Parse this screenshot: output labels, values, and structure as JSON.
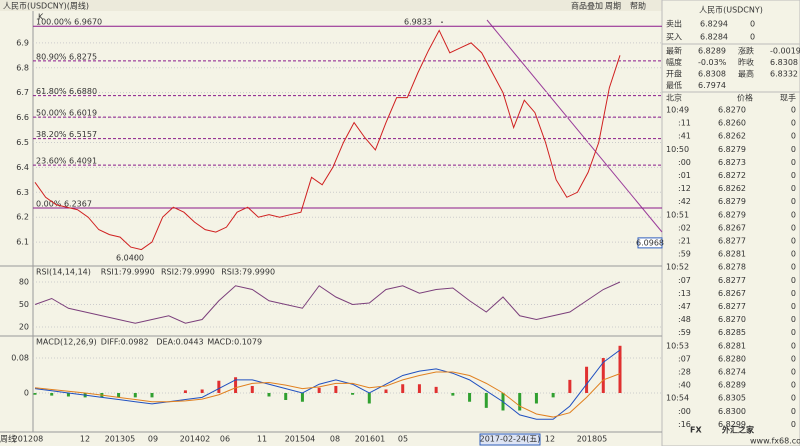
{
  "title": "人民币(USDCNY)(周线)",
  "toolbar": [
    "商品叠加",
    "周期",
    "帮助"
  ],
  "chart_data": [
    {
      "type": "line",
      "title": "K",
      "color": "#d02020",
      "ylim": [
        6.008,
        7.028
      ],
      "yticks": [
        6.1,
        6.2,
        6.3,
        6.4,
        6.5,
        6.6,
        6.7,
        6.8,
        6.9
      ],
      "values": [
        6.34,
        6.28,
        6.25,
        6.24,
        6.23,
        6.2,
        6.15,
        6.13,
        6.12,
        6.08,
        6.07,
        6.1,
        6.2,
        6.24,
        6.22,
        6.18,
        6.15,
        6.14,
        6.16,
        6.22,
        6.24,
        6.2,
        6.21,
        6.2,
        6.21,
        6.22,
        6.36,
        6.33,
        6.4,
        6.5,
        6.58,
        6.52,
        6.47,
        6.58,
        6.68,
        6.68,
        6.78,
        6.87,
        6.95,
        6.86,
        6.88,
        6.9,
        6.86,
        6.78,
        6.7,
        6.56,
        6.67,
        6.62,
        6.5,
        6.35,
        6.28,
        6.3,
        6.38,
        6.5,
        6.72,
        6.85
      ],
      "levels": [
        {
          "value": 6.967,
          "label": "100.00% 6.9670"
        },
        {
          "value": 6.8275,
          "label": "80.90% 6.8275"
        },
        {
          "value": 6.688,
          "label": "61.80% 6.6880"
        },
        {
          "value": 6.6019,
          "label": "50.00% 6.6019"
        },
        {
          "value": 6.5157,
          "label": "38.20% 6.5157"
        },
        {
          "value": 6.4091,
          "label": "23.60% 6.4091"
        },
        {
          "value": 6.2367,
          "label": "0.00% 6.2367"
        }
      ],
      "annotations": [
        {
          "value": 6.9833,
          "label": "6.9833"
        },
        {
          "value": 6.04,
          "label": "6.0400"
        },
        {
          "value": 6.0968,
          "label": "6.0968"
        }
      ],
      "x_labels": [
        "周线",
        "201208",
        "12",
        "201305",
        "09",
        "201402",
        "06",
        "11",
        "201504",
        "08",
        "201601",
        "05",
        "2017-02-24(五)",
        "12",
        "201805"
      ]
    },
    {
      "type": "line",
      "header": [
        "RSI(14,14,14)",
        "RSI1:79.9990",
        "RSI2:79.9990",
        "RSI3:79.9990"
      ],
      "color": "#7b3f7b",
      "ylim": [
        9.3,
        98.7
      ],
      "yticks": [
        20,
        50,
        80
      ],
      "values": [
        50,
        58,
        45,
        40,
        35,
        30,
        25,
        30,
        35,
        25,
        30,
        55,
        75,
        70,
        55,
        50,
        45,
        75,
        60,
        50,
        52,
        70,
        75,
        65,
        70,
        72,
        55,
        40,
        60,
        35,
        30,
        35,
        40,
        55,
        70,
        80
      ]
    },
    {
      "type": "macd",
      "header": [
        "MACD(12,26,9)",
        "DIFF:0.0982",
        "DEA:0.0443",
        "MACD:0.1079"
      ],
      "ylim": [
        -0.0846,
        0.1257
      ],
      "yticks": [
        0,
        0.08
      ],
      "series": [
        {
          "name": "DIFF",
          "color": "#2050c0",
          "values": [
            0.01,
            0.005,
            0,
            -0.005,
            -0.01,
            -0.015,
            -0.02,
            -0.025,
            -0.02,
            -0.015,
            -0.01,
            0.01,
            0.03,
            0.03,
            0.02,
            0.01,
            0,
            0.02,
            0.03,
            0.02,
            0,
            0.02,
            0.04,
            0.05,
            0.055,
            0.045,
            0.03,
            0.005,
            -0.02,
            -0.05,
            -0.06,
            -0.06,
            -0.03,
            0.02,
            0.07,
            0.0982
          ]
        },
        {
          "name": "DEA",
          "color": "#e08020",
          "values": [
            0.012,
            0.008,
            0.004,
            0,
            -0.005,
            -0.01,
            -0.015,
            -0.02,
            -0.02,
            -0.018,
            -0.014,
            -0.004,
            0.012,
            0.022,
            0.024,
            0.018,
            0.01,
            0.014,
            0.022,
            0.022,
            0.012,
            0.016,
            0.03,
            0.04,
            0.048,
            0.048,
            0.04,
            0.022,
            0,
            -0.03,
            -0.048,
            -0.055,
            -0.045,
            -0.01,
            0.03,
            0.0443
          ]
        },
        {
          "name": "MACD",
          "color": "#e03030",
          "values": [
            -0.004,
            -0.006,
            -0.008,
            -0.01,
            -0.01,
            -0.01,
            -0.01,
            -0.01,
            0,
            0.006,
            0.008,
            0.028,
            0.036,
            0.016,
            -0.008,
            -0.016,
            -0.02,
            0.012,
            0.016,
            -0.004,
            -0.024,
            0.008,
            0.02,
            0.02,
            0.014,
            -0.006,
            -0.02,
            -0.034,
            -0.04,
            -0.04,
            -0.024,
            -0.01,
            0.03,
            0.06,
            0.08,
            0.1079
          ]
        }
      ]
    }
  ],
  "quote": {
    "name": "人民币(USDCNY)",
    "big": [
      [
        "卖出",
        "6.8294",
        "0"
      ],
      [
        "买入",
        "6.8284",
        "0"
      ]
    ],
    "stats": [
      [
        "最新",
        "6.8289",
        "涨跌",
        "-0.0019"
      ],
      [
        "幅度",
        "-0.03%",
        "昨收",
        "6.8308"
      ],
      [
        "开盘",
        "6.8308",
        "最高",
        "6.8332"
      ],
      [
        "最低",
        "6.7974"
      ]
    ],
    "table_header": [
      "北京",
      "价格",
      "现手"
    ],
    "ticks": [
      [
        "10:49",
        "6.8270",
        "0"
      ],
      [
        ":11",
        "6.8260",
        "0"
      ],
      [
        ":41",
        "6.8262",
        "0"
      ],
      [
        "10:50",
        "6.8279",
        "0"
      ],
      [
        ":00",
        "6.8273",
        "0"
      ],
      [
        ":01",
        "6.8272",
        "0"
      ],
      [
        ":12",
        "6.8262",
        "0"
      ],
      [
        ":42",
        "6.8279",
        "0"
      ],
      [
        "10:51",
        "6.8279",
        "0"
      ],
      [
        ":02",
        "6.8267",
        "0"
      ],
      [
        ":21",
        "6.8277",
        "0"
      ],
      [
        ":59",
        "6.8281",
        "0"
      ],
      [
        "10:52",
        "6.8278",
        "0"
      ],
      [
        ":07",
        "6.8277",
        "0"
      ],
      [
        ":13",
        "6.8267",
        "0"
      ],
      [
        ":47",
        "6.8277",
        "0"
      ],
      [
        ":48",
        "6.8270",
        "0"
      ],
      [
        ":59",
        "6.8285",
        "0"
      ],
      [
        "10:53",
        "6.8281",
        "0"
      ],
      [
        ":07",
        "6.8280",
        "0"
      ],
      [
        ":28",
        "6.8274",
        "0"
      ],
      [
        ":40",
        "6.8289",
        "0"
      ],
      [
        "10:54",
        "6.8305",
        "0"
      ],
      [
        ":00",
        "6.8300",
        "0"
      ],
      [
        ":16",
        "6.8299",
        "0"
      ]
    ]
  },
  "watermark": [
    "FX",
    "外汇之家",
    "www.fx68.com"
  ]
}
